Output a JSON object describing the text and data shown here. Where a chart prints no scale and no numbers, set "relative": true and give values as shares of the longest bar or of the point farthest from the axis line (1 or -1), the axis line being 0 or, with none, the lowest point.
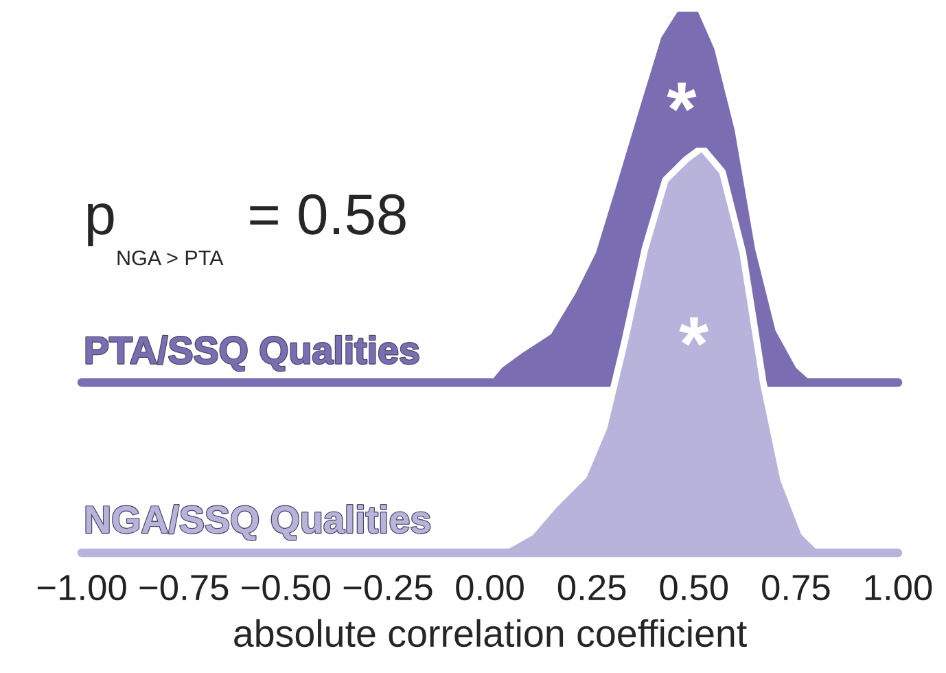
{
  "chart_data": [
    {
      "type": "area",
      "relative": true,
      "tick_labels": false,
      "xlim": [
        -1,
        1
      ],
      "annotations": [
        "p$_{NGA > PTA}$ = 0.58",
        "*"
      ],
      "series": [
        {
          "name": "PTA/SSQ Qualities",
          "color": "#7b6db1",
          "x": [
            -1.0,
            0.0,
            0.03,
            0.08,
            0.15,
            0.21,
            0.26,
            0.31,
            0.37,
            0.42,
            0.46,
            0.51,
            0.55,
            0.6,
            0.65,
            0.7,
            0.75,
            0.79,
            1.0
          ],
          "values": [
            0,
            0,
            0.04,
            0.08,
            0.13,
            0.24,
            0.35,
            0.53,
            0.75,
            0.93,
            1.0,
            1.0,
            0.9,
            0.68,
            0.36,
            0.14,
            0.04,
            0,
            0
          ]
        }
      ]
    },
    {
      "type": "area",
      "relative": true,
      "tick_labels": "x",
      "xlim": [
        -1,
        1
      ],
      "xlabel": "absolute correlation coefficient",
      "xticks": [
        {
          "value": -1,
          "label": "−1.00"
        },
        {
          "value": -0.75,
          "label": "−0.75"
        },
        {
          "value": -0.5,
          "label": "−0.50"
        },
        {
          "value": -0.25,
          "label": "−0.25"
        },
        {
          "value": 0,
          "label": "0.00"
        },
        {
          "value": 0.25,
          "label": "0.25"
        },
        {
          "value": 0.5,
          "label": "0.50"
        },
        {
          "value": 0.75,
          "label": "0.75"
        },
        {
          "value": 1,
          "label": "1.00"
        }
      ],
      "annotations": [
        "*"
      ],
      "series": [
        {
          "name": "NGA/SSQ Qualities",
          "color": "#b8b3db",
          "x": [
            -1.0,
            0.0,
            0.03,
            0.1,
            0.16,
            0.23,
            0.28,
            0.33,
            0.38,
            0.43,
            0.48,
            0.52,
            0.57,
            0.62,
            0.67,
            0.72,
            0.77,
            0.81,
            1.0
          ],
          "values": [
            0,
            0,
            0.01,
            0.05,
            0.12,
            0.19,
            0.31,
            0.52,
            0.75,
            0.92,
            0.97,
            1.0,
            0.94,
            0.74,
            0.42,
            0.18,
            0.05,
            0.01,
            0
          ]
        }
      ]
    }
  ]
}
